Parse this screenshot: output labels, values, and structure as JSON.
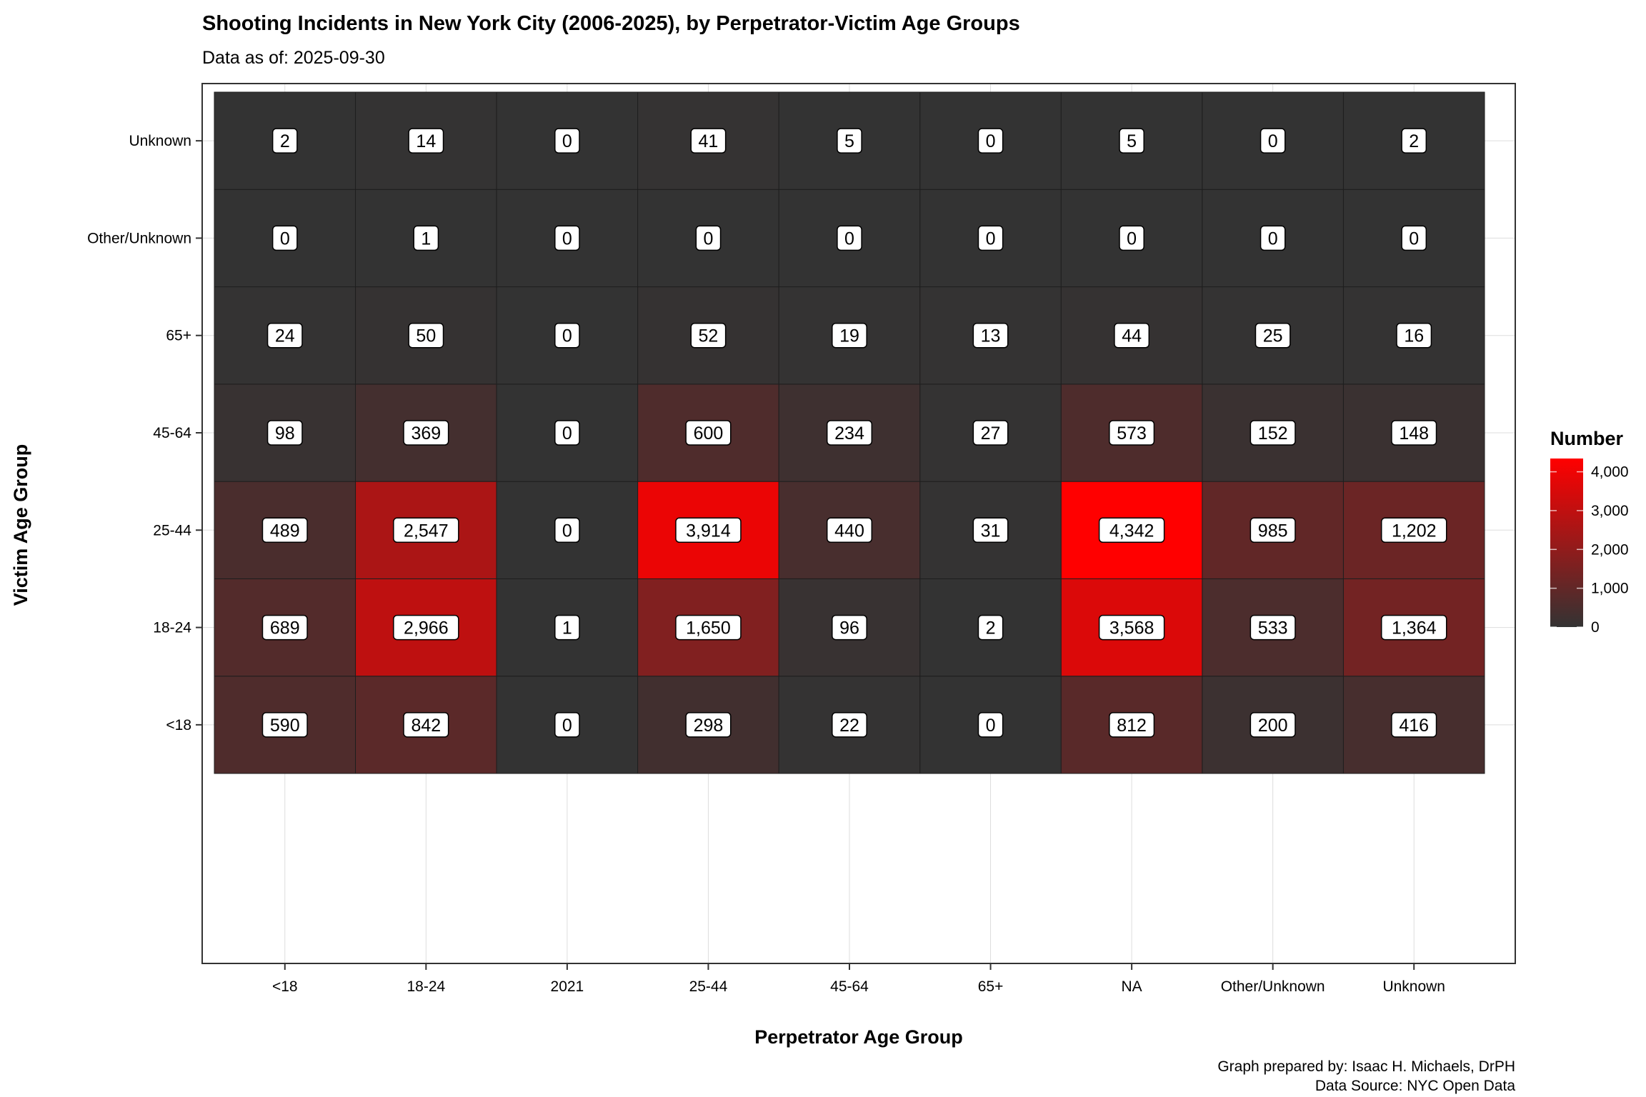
{
  "chart_data": {
    "type": "heatmap",
    "title": "Shooting Incidents in New York City (2006-2025), by Perpetrator-Victim Age Groups",
    "subtitle": "Data as of: 2025-09-30",
    "xlabel": "Perpetrator Age Group",
    "ylabel": "Victim Age Group",
    "x_categories": [
      "<18",
      "18-24",
      "2021",
      "25-44",
      "45-64",
      "65+",
      "NA",
      "Other/Unknown",
      "Unknown"
    ],
    "y_categories": [
      "<18",
      "18-24",
      "25-44",
      "45-64",
      "65+",
      "Other/Unknown",
      "Unknown"
    ],
    "values": [
      [
        590,
        842,
        0,
        298,
        22,
        0,
        812,
        200,
        416
      ],
      [
        689,
        2966,
        1,
        1650,
        96,
        2,
        3568,
        533,
        1364
      ],
      [
        489,
        2547,
        0,
        3914,
        440,
        31,
        4342,
        985,
        1202
      ],
      [
        98,
        369,
        0,
        600,
        234,
        27,
        573,
        152,
        148
      ],
      [
        24,
        50,
        0,
        52,
        19,
        13,
        44,
        25,
        16
      ],
      [
        0,
        1,
        0,
        0,
        0,
        0,
        0,
        0,
        0
      ],
      [
        2,
        14,
        0,
        41,
        5,
        0,
        5,
        0,
        2
      ]
    ],
    "legend": {
      "title": "Number",
      "ticks": [
        0,
        1000,
        2000,
        3000,
        4000
      ],
      "tick_labels": [
        "0",
        "1,000",
        "2,000",
        "3,000",
        "4,000"
      ],
      "range": [
        0,
        4342
      ],
      "low_color": "#333333",
      "high_color": "#ff0000",
      "position": "right"
    },
    "caption": [
      "Graph prepared by: Isaac H. Michaels, DrPH",
      "Data Source: NYC Open Data"
    ]
  }
}
